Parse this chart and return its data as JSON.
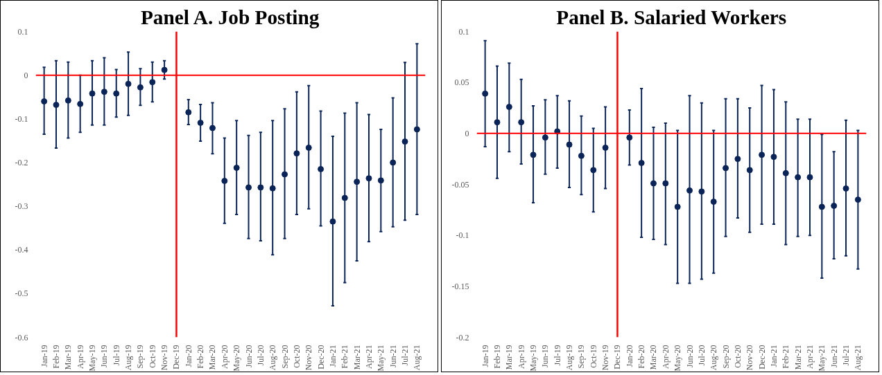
{
  "chart_data": [
    {
      "type": "scatter",
      "title": "Panel A. Job Posting",
      "marker": "circle",
      "grid": false,
      "categories": [
        "Jan-19",
        "Feb-19",
        "Mar-19",
        "Apr-19",
        "May-19",
        "Jun-19",
        "Jul-19",
        "Aug-19",
        "Sep-19",
        "Oct-19",
        "Nov-19",
        "Dec-19",
        "Jan-20",
        "Feb-20",
        "Mar-20",
        "Apr-20",
        "May-20",
        "Jun-20",
        "Jul-20",
        "Aug-20",
        "Sep-20",
        "Oct-20",
        "Nov-20",
        "Dec-20",
        "Jan-21",
        "Feb-21",
        "Mar-21",
        "Apr-21",
        "May-21",
        "Jun-21",
        "Jul-21",
        "Aug-21"
      ],
      "series": [
        {
          "color": "#0b2458",
          "values": [
            -0.06,
            -0.068,
            -0.058,
            -0.066,
            -0.042,
            -0.038,
            -0.042,
            -0.02,
            -0.028,
            -0.016,
            0.012,
            null,
            -0.085,
            -0.109,
            -0.121,
            -0.242,
            -0.212,
            -0.257,
            -0.257,
            -0.259,
            -0.227,
            -0.179,
            -0.166,
            -0.215,
            -0.335,
            -0.281,
            -0.244,
            -0.236,
            -0.241,
            -0.2,
            -0.152,
            -0.124
          ],
          "errors": [
            [
              -0.135,
              0.018
            ],
            [
              -0.167,
              0.033
            ],
            [
              -0.144,
              0.03
            ],
            [
              -0.131,
              0.0
            ],
            [
              -0.114,
              0.033
            ],
            [
              -0.114,
              0.04
            ],
            [
              -0.096,
              0.013
            ],
            [
              -0.092,
              0.053
            ],
            [
              -0.069,
              0.015
            ],
            [
              -0.061,
              0.03
            ],
            [
              -0.009,
              0.033
            ],
            null,
            [
              -0.113,
              -0.056
            ],
            [
              -0.151,
              -0.067
            ],
            [
              -0.18,
              -0.063
            ],
            [
              -0.339,
              -0.144
            ],
            [
              -0.319,
              -0.104
            ],
            [
              -0.374,
              -0.138
            ],
            [
              -0.379,
              -0.131
            ],
            [
              -0.411,
              -0.104
            ],
            [
              -0.374,
              -0.077
            ],
            [
              -0.319,
              -0.038
            ],
            [
              -0.306,
              -0.024
            ],
            [
              -0.345,
              -0.082
            ],
            [
              -0.528,
              -0.14
            ],
            [
              -0.475,
              -0.087
            ],
            [
              -0.425,
              -0.063
            ],
            [
              -0.381,
              -0.09
            ],
            [
              -0.358,
              -0.124
            ],
            [
              -0.347,
              -0.052
            ],
            [
              -0.332,
              0.029
            ],
            [
              -0.319,
              0.072
            ]
          ]
        }
      ],
      "ylim": [
        -0.6,
        0.1
      ],
      "yticks": [
        -0.6,
        -0.5,
        -0.4,
        -0.3,
        -0.2,
        -0.1,
        0,
        0.1
      ],
      "ref_lines": [
        {
          "axis": "y",
          "value": 0,
          "color": "#ff0000"
        },
        {
          "axis": "x",
          "value": "Dec-19",
          "color": "#ff0000"
        }
      ]
    },
    {
      "type": "scatter",
      "title": "Panel B. Salaried Workers",
      "marker": "circle",
      "grid": false,
      "categories": [
        "Jan-19",
        "Feb-19",
        "Mar-19",
        "Apr-19",
        "May-19",
        "Jun-19",
        "Jul-19",
        "Aug-19",
        "Sep-19",
        "Oct-19",
        "Nov-19",
        "Dec-19",
        "Jan-20",
        "Feb-20",
        "Mar-20",
        "Apr-20",
        "May-20",
        "Jun-20",
        "Jul-20",
        "Aug-20",
        "Sep-20",
        "Oct-20",
        "Nov-20",
        "Dec-20",
        "Jan-21",
        "Feb-21",
        "Mar-21",
        "Apr-21",
        "May-21",
        "Jun-21",
        "Jul-21",
        "Aug-21"
      ],
      "series": [
        {
          "color": "#0b2458",
          "values": [
            0.039,
            0.011,
            0.026,
            0.011,
            -0.021,
            -0.004,
            0.002,
            -0.011,
            -0.022,
            -0.036,
            -0.014,
            null,
            -0.004,
            -0.029,
            -0.049,
            -0.049,
            -0.072,
            -0.056,
            -0.057,
            -0.067,
            -0.034,
            -0.025,
            -0.036,
            -0.021,
            -0.023,
            -0.039,
            -0.043,
            -0.043,
            -0.072,
            -0.071,
            -0.054,
            -0.065
          ],
          "errors": [
            [
              -0.013,
              0.091
            ],
            [
              -0.044,
              0.066
            ],
            [
              -0.018,
              0.069
            ],
            [
              -0.03,
              0.053
            ],
            [
              -0.068,
              0.027
            ],
            [
              -0.04,
              0.033
            ],
            [
              -0.034,
              0.037
            ],
            [
              -0.053,
              0.032
            ],
            [
              -0.06,
              0.017
            ],
            [
              -0.077,
              0.005
            ],
            [
              -0.054,
              0.026
            ],
            null,
            [
              -0.031,
              0.023
            ],
            [
              -0.102,
              0.044
            ],
            [
              -0.104,
              0.006
            ],
            [
              -0.109,
              0.01
            ],
            [
              -0.147,
              0.003
            ],
            [
              -0.147,
              0.037
            ],
            [
              -0.143,
              0.03
            ],
            [
              -0.137,
              0.003
            ],
            [
              -0.101,
              0.034
            ],
            [
              -0.083,
              0.034
            ],
            [
              -0.097,
              0.025
            ],
            [
              -0.089,
              0.047
            ],
            [
              -0.089,
              0.043
            ],
            [
              -0.109,
              0.031
            ],
            [
              -0.101,
              0.014
            ],
            [
              -0.1,
              0.014
            ],
            [
              -0.142,
              -0.001
            ],
            [
              -0.123,
              -0.018
            ],
            [
              -0.12,
              0.013
            ],
            [
              -0.133,
              0.003
            ]
          ]
        }
      ],
      "ylim": [
        -0.2,
        0.1
      ],
      "yticks": [
        -0.2,
        -0.15,
        -0.1,
        -0.05,
        0,
        0.05,
        0.1
      ],
      "ref_lines": [
        {
          "axis": "y",
          "value": 0,
          "color": "#ff0000"
        },
        {
          "axis": "x",
          "value": "Dec-19",
          "color": "#ff0000"
        }
      ]
    }
  ]
}
